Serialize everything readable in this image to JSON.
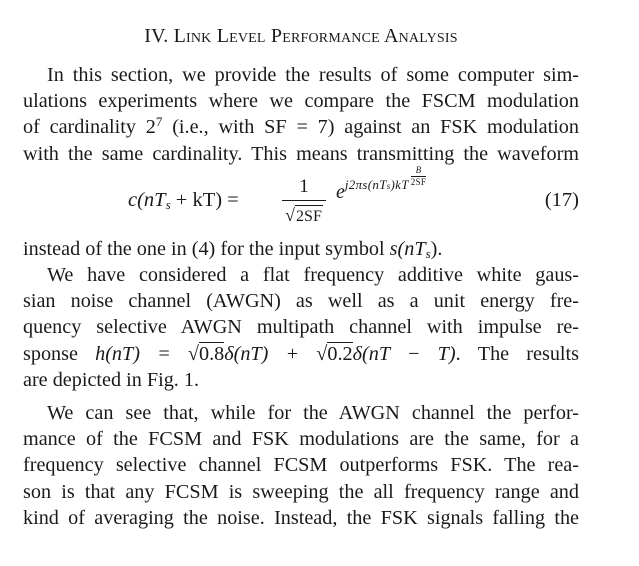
{
  "heading": "IV. Link Level Performance Analysis",
  "para1_lines": [
    "In this section, we provide the results of some computer sim-",
    "ulations experiments where we compare the FSCM modulation",
    "with the same cardinality. This means transmitting the waveform"
  ],
  "para1_line3_before": "of cardinality 2",
  "para1_line3_sup": "7",
  "para1_line3_after": " (i.e., with SF = 7) against an FSK modulation",
  "equation": {
    "lhs": "c(nT",
    "lhs_sub": "s",
    "lhs_rest": " + kT) =",
    "numerator": "1",
    "denominator": "2SF",
    "exp_base": "e",
    "exp_sup": "j2πs(nT",
    "exp_sup_sub": "s",
    "exp_sup_rest": ")kT",
    "exp_frac_num": "B",
    "exp_frac_den": "2SF",
    "number": "(17)"
  },
  "para2_line1_before": "instead of the one in (4) for the input symbol ",
  "para2_line1_math": "s(nT",
  "para2_line1_math_sub": "s",
  "para2_line1_after": ").",
  "para3_lines": [
    "We have considered a flat frequency additive white gaus-",
    "sian noise channel (AWGN) as well as a unit energy fre-",
    "quency selective AWGN multipath channel with impulse re-",
    "are depicted in Fig. 1."
  ],
  "para3_line5": {
    "before": "sponse ",
    "m1": "h(nT) = ",
    "sqrt1": "0.8",
    "m2": "δ(nT) + ",
    "sqrt2": "0.2",
    "m3": "δ(nT − T)",
    "after": ". The results"
  },
  "para4_lines": [
    "We can see that, while for the AWGN channel the perfor-",
    "mance of the FCSM and FSK modulations are the same, for a",
    "frequency selective channel FCSM outperforms FSK. The rea-",
    "son is that any FCSM is sweeping the all frequency range and",
    "kind of averaging the noise. Instead, the FSK signals falling the"
  ]
}
